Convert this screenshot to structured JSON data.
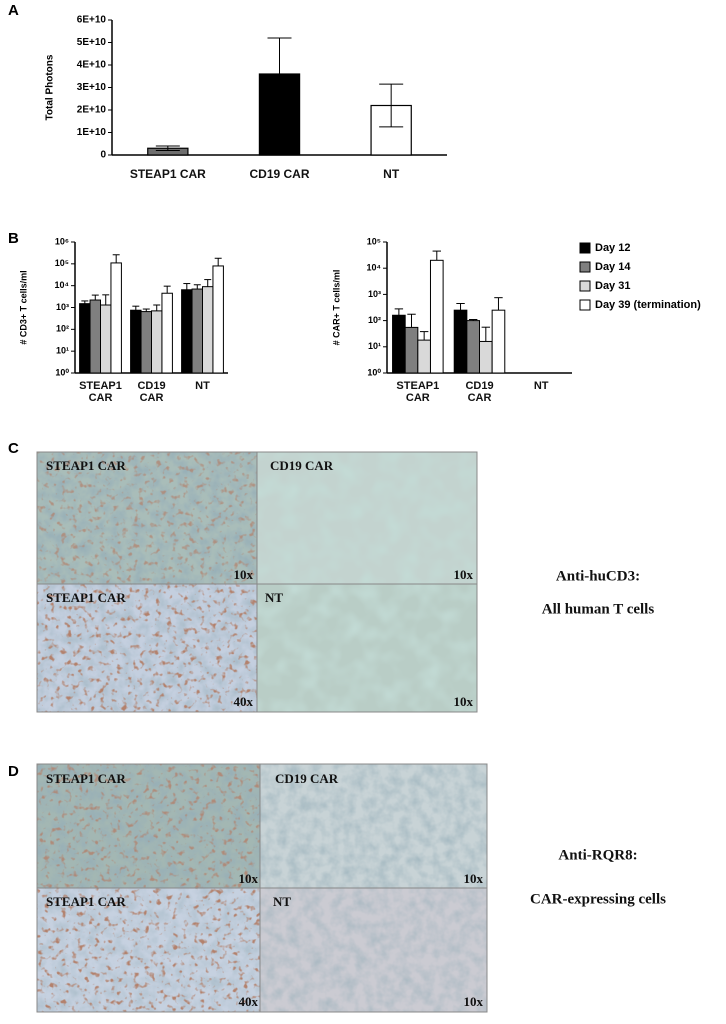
{
  "panel_labels": [
    "A",
    "B",
    "C",
    "D"
  ],
  "chart_data": [
    {
      "type": "bar",
      "y_label": "Total Photons",
      "categories": [
        "STEAP1 CAR",
        "CD19 CAR",
        "NT"
      ],
      "values": [
        3000000000,
        36000000000,
        22000000000
      ],
      "errors": [
        1000000000,
        16000000000,
        9500000000
      ],
      "error_direction": "both",
      "colors": [
        "#6e6e6e",
        "#000000",
        "#ffffff"
      ],
      "ylim": [
        0,
        60000000000
      ],
      "yticks": [
        0,
        {
          "value": 10000000000,
          "label": "1E+10"
        },
        {
          "value": 20000000000,
          "label": "2E+10"
        },
        {
          "value": 30000000000,
          "label": "3E+10"
        },
        {
          "value": 40000000000,
          "label": "4E+10"
        },
        {
          "value": 50000000000,
          "label": "5E+10"
        },
        {
          "value": 60000000000,
          "label": "6E+10"
        }
      ],
      "log_scale": false
    },
    {
      "type": "bar",
      "y_label": "# CD3+ T cells/ml",
      "categories": [
        "STEAP1 CAR",
        "CD19 CAR",
        "NT"
      ],
      "series": [
        {
          "color": "#000000",
          "values": [
            1500,
            750,
            6500
          ],
          "errors": [
            500,
            400,
            6000
          ]
        },
        {
          "color": "#7f7f7f",
          "values": [
            2200,
            650,
            7000
          ],
          "errors": [
            1500,
            200,
            4000
          ]
        },
        {
          "color": "#d9d9d9",
          "values": [
            1300,
            700,
            9000
          ],
          "errors": [
            2500,
            600,
            10000
          ]
        },
        {
          "color": "#ffffff",
          "values": [
            110000,
            4500,
            80000
          ],
          "errors": [
            150000,
            5000,
            100000
          ]
        }
      ],
      "error_direction": "up",
      "ylim": [
        1,
        1000000
      ],
      "yticks": [
        {
          "value": 1,
          "label": "10⁰"
        },
        {
          "value": 10,
          "label": "10¹"
        },
        {
          "value": 100,
          "label": "10²"
        },
        {
          "value": 1000,
          "label": "10³"
        },
        {
          "value": 10000,
          "label": "10⁴"
        },
        {
          "value": 100000,
          "label": "10⁵"
        },
        {
          "value": 1000000,
          "label": "10⁶"
        }
      ],
      "log_scale": true
    },
    {
      "type": "bar",
      "y_label": "# CAR+ T cells/ml",
      "categories": [
        "STEAP1 CAR",
        "CD19 CAR",
        "NT"
      ],
      "series": [
        {
          "name": "Day 12",
          "color": "#000000",
          "values": [
            160,
            250,
            null
          ],
          "errors": [
            120,
            200,
            null
          ]
        },
        {
          "name": "Day 14",
          "color": "#7f7f7f",
          "values": [
            55,
            100,
            null
          ],
          "errors": [
            120,
            10,
            null
          ]
        },
        {
          "name": "Day 31",
          "color": "#d9d9d9",
          "values": [
            18,
            16,
            null
          ],
          "errors": [
            20,
            40,
            null
          ]
        },
        {
          "name": "Day 39 (termination)",
          "color": "#ffffff",
          "values": [
            20000,
            250,
            null
          ],
          "errors": [
            25000,
            500,
            null
          ]
        }
      ],
      "error_direction": "up",
      "ylim": [
        1,
        100000
      ],
      "yticks": [
        {
          "value": 1,
          "label": "10⁰"
        },
        {
          "value": 10,
          "label": "10¹"
        },
        {
          "value": 100,
          "label": "10²"
        },
        {
          "value": 1000,
          "label": "10³"
        },
        {
          "value": 10000,
          "label": "10⁴"
        },
        {
          "value": 100000,
          "label": "10⁵"
        }
      ],
      "log_scale": true,
      "legend": "right"
    }
  ],
  "panel_c": {
    "images": [
      {
        "label": "STEAP1  CAR",
        "magnification": "10x"
      },
      {
        "label": "CD19 CAR",
        "magnification": "10x"
      },
      {
        "label": "STEAP1  CAR",
        "magnification": "40x"
      },
      {
        "label": "NT",
        "magnification": "10x"
      }
    ],
    "stain": "Anti-huCD3:",
    "description": "All human T cells"
  },
  "panel_d": {
    "images": [
      {
        "label": "STEAP1  CAR",
        "magnification": "10x"
      },
      {
        "label": "CD19  CAR",
        "magnification": "10x"
      },
      {
        "label": "STEAP1  CAR",
        "magnification": "40x"
      },
      {
        "label": "NT",
        "magnification": "10x"
      }
    ],
    "stain": "Anti-RQR8:",
    "description": "CAR-expressing cells"
  }
}
